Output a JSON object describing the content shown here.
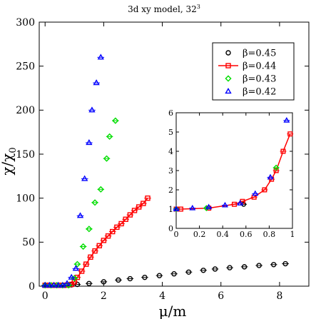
{
  "chart_data": [
    {
      "type": "scatter",
      "title": "3d xy model, 32",
      "title_sup": "3",
      "xlabel": "μ/m",
      "ylabel": "χ/χ",
      "ylabel_sub": "0",
      "xlim": [
        -0.2,
        9
      ],
      "ylim": [
        0,
        300
      ],
      "xticks": [
        0,
        2,
        4,
        6,
        8
      ],
      "yticks": [
        0,
        50,
        100,
        150,
        200,
        250,
        300
      ],
      "legend": "top-right",
      "series": [
        {
          "name": "β=0.45",
          "marker": "circle",
          "color": "#000000",
          "line": false,
          "x": [
            0.0,
            0.1,
            0.2,
            0.3,
            0.4,
            0.5,
            0.6,
            0.7,
            0.8,
            0.9,
            1.1,
            1.5,
            2.0,
            2.5,
            2.9,
            3.4,
            3.9,
            4.4,
            4.9,
            5.4,
            5.8,
            6.3,
            6.8,
            7.3,
            7.8,
            8.2
          ],
          "y": [
            1,
            1,
            1,
            1,
            1,
            1,
            1,
            1,
            1,
            1.5,
            2,
            3,
            5,
            7,
            8.5,
            10,
            12,
            14,
            16,
            18,
            19.5,
            21,
            22,
            23.5,
            24.5,
            25.5
          ]
        },
        {
          "name": "β=0.44",
          "marker": "square",
          "color": "#ff0000",
          "line": true,
          "x": [
            0.0,
            0.15,
            0.3,
            0.45,
            0.6,
            0.75,
            0.9,
            1.0,
            1.1,
            1.25,
            1.4,
            1.55,
            1.7,
            1.85,
            2.0,
            2.15,
            2.3,
            2.45,
            2.6,
            2.75,
            2.9,
            3.05,
            3.2,
            3.35,
            3.5
          ],
          "y": [
            1,
            1,
            1,
            1,
            1,
            1.2,
            2,
            5,
            10,
            17,
            25,
            33,
            40,
            46,
            52,
            57,
            62,
            67,
            71,
            76,
            81,
            86,
            90,
            94,
            100
          ]
        },
        {
          "name": "β=0.43",
          "marker": "diamond",
          "color": "#00dd00",
          "line": false,
          "x": [
            0.0,
            0.2,
            0.4,
            0.6,
            0.8,
            1.0,
            1.1,
            1.3,
            1.5,
            1.7,
            1.9,
            2.1,
            2.2,
            2.4
          ],
          "y": [
            1,
            1,
            1,
            1,
            1,
            9,
            25,
            45,
            65,
            95,
            110,
            145,
            170,
            188
          ]
        },
        {
          "name": "β=0.42",
          "marker": "triangle",
          "color": "#0000ff",
          "line": false,
          "x": [
            0.0,
            0.15,
            0.3,
            0.45,
            0.6,
            0.75,
            0.9,
            1.05,
            1.2,
            1.35,
            1.5,
            1.6,
            1.75,
            1.9
          ],
          "y": [
            1,
            1,
            1,
            1,
            1,
            3,
            10,
            20,
            80,
            122,
            163,
            200,
            231,
            260
          ]
        }
      ]
    },
    {
      "type": "scatter",
      "title": "",
      "xlim": [
        0,
        1
      ],
      "ylim": [
        0,
        6
      ],
      "xticks": [
        "0",
        "0.2",
        "0.4",
        "0.6",
        "0.8",
        "1"
      ],
      "yticks": [
        "0",
        "1",
        "2",
        "3",
        "4",
        "5",
        "6"
      ],
      "series": [
        {
          "name": "β=0.45",
          "marker": "circle",
          "color": "#000000",
          "line": false,
          "x": [
            0.01,
            0.58
          ],
          "y": [
            1.0,
            1.25
          ]
        },
        {
          "name": "β=0.44",
          "marker": "square",
          "color": "#ff0000",
          "line": true,
          "x": [
            0.0,
            0.04,
            0.28,
            0.5,
            0.57,
            0.67,
            0.76,
            0.82,
            0.86,
            0.92,
            0.98
          ],
          "y": [
            1.0,
            1.0,
            1.05,
            1.25,
            1.4,
            1.62,
            2.0,
            2.55,
            3.0,
            4.0,
            4.9
          ]
        },
        {
          "name": "β=0.43",
          "marker": "diamond",
          "color": "#00dd00",
          "line": false,
          "x": [
            0.0,
            0.26,
            0.86
          ],
          "y": [
            1.0,
            1.05,
            3.15
          ]
        },
        {
          "name": "β=0.42",
          "marker": "triangle",
          "color": "#0000ff",
          "line": false,
          "x": [
            0.0,
            0.14,
            0.28,
            0.42,
            0.55,
            0.68,
            0.81,
            0.95
          ],
          "y": [
            1.0,
            1.05,
            1.1,
            1.2,
            1.3,
            1.8,
            2.65,
            5.6
          ]
        }
      ]
    }
  ]
}
